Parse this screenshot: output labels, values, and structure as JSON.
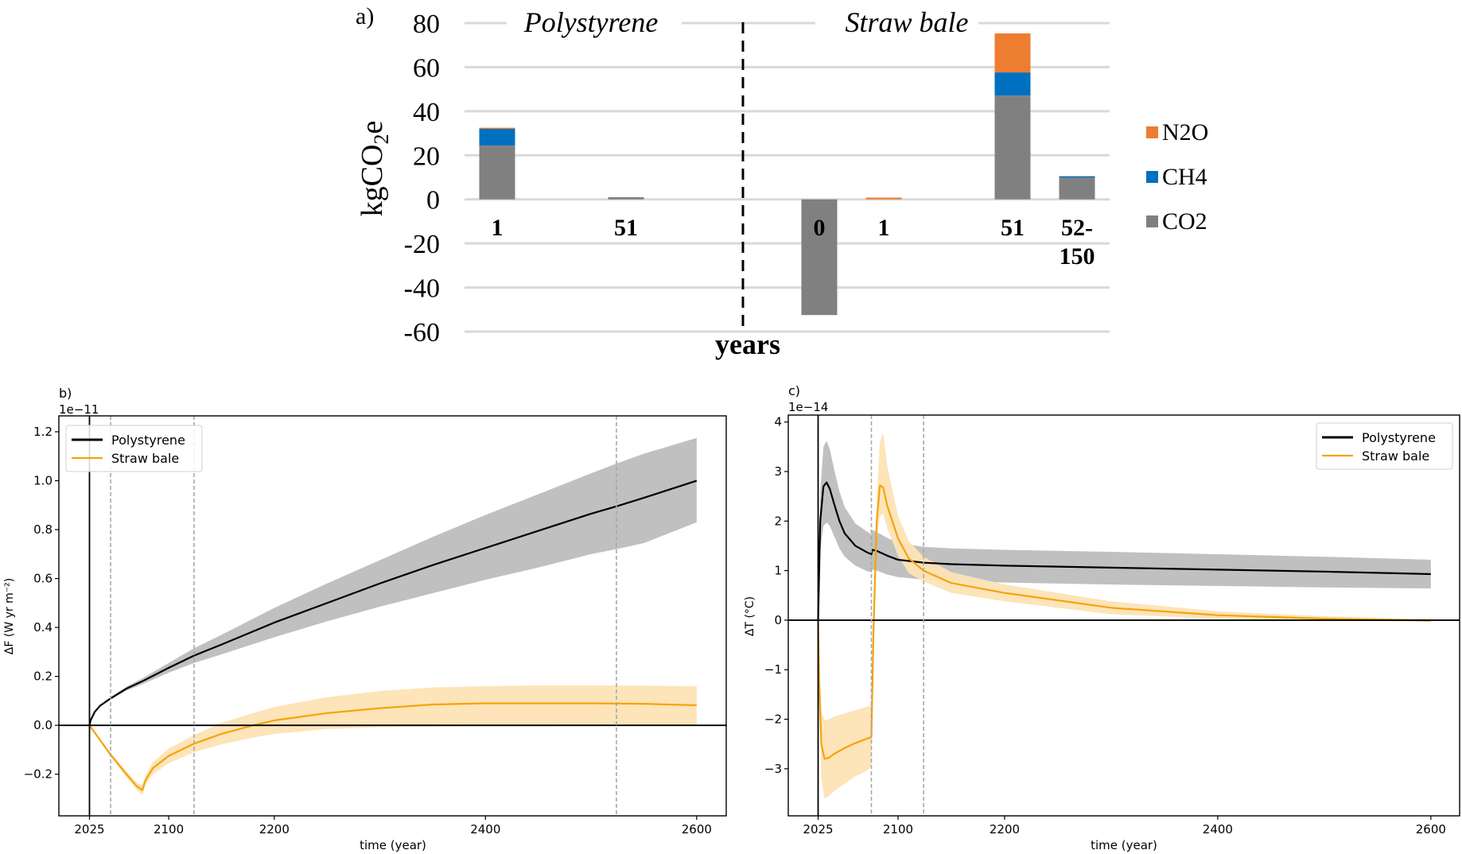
{
  "chart_data": [
    {
      "panel_label": "a)",
      "type": "bar",
      "stacked": true,
      "title": "",
      "group_titles": [
        "Polystyrene",
        "Straw bale"
      ],
      "xlabel": "years",
      "ylabel_main": "kgCO",
      "ylabel_sub": "2",
      "ylabel_suffix": "e",
      "ylim": [
        -60,
        80
      ],
      "yticks": [
        80,
        60,
        40,
        20,
        0,
        -20,
        -40,
        -60
      ],
      "ytick_labels": [
        "80",
        "60",
        "40",
        "20",
        "0",
        "-20",
        "-40",
        "-60"
      ],
      "grid": true,
      "legend_position": "right",
      "categories": [
        {
          "group": "Polystyrene",
          "label": [
            "1"
          ]
        },
        {
          "group": "Polystyrene",
          "label": [
            "51"
          ]
        },
        {
          "group": "Straw bale",
          "label": [
            "0"
          ]
        },
        {
          "group": "Straw bale",
          "label": [
            "1"
          ]
        },
        {
          "group": "Straw bale",
          "label": [
            "51"
          ]
        },
        {
          "group": "Straw bale",
          "label": [
            "52-",
            "150"
          ]
        }
      ],
      "series": [
        {
          "name": "CO2",
          "color": "#808080",
          "values": [
            24.4,
            1.0,
            -52.5,
            0.0,
            47.1,
            10.2
          ]
        },
        {
          "name": "CH4",
          "color": "#0070c0",
          "values": [
            7.8,
            0.0,
            0.0,
            0.0,
            10.5,
            0.3
          ]
        },
        {
          "name": "N2O",
          "color": "#ed7d31",
          "values": [
            0.3,
            0.0,
            0.0,
            0.8,
            17.7,
            0.0
          ]
        }
      ],
      "legend": [
        "N2O",
        "CH4",
        "CO2"
      ]
    },
    {
      "panel_label": "b)",
      "type": "line",
      "offset_text": "1e−11",
      "xlabel": "time (year)",
      "ylabel": "ΔF (W yr m⁻²)",
      "xlim": [
        1996,
        2628
      ],
      "ylim": [
        -0.37,
        1.265
      ],
      "xticks": [
        2025,
        2100,
        2200,
        2400,
        2600
      ],
      "yticks": [
        -0.2,
        0.0,
        0.2,
        0.4,
        0.6,
        0.8,
        1.0,
        1.2
      ],
      "ytick_labels": [
        "−0.2",
        "0.0",
        "0.2",
        "0.4",
        "0.6",
        "0.8",
        "1.0",
        "1.2"
      ],
      "vlines_solid": [
        2025
      ],
      "vlines_dashed": [
        2045,
        2124,
        2524
      ],
      "hline": 0,
      "legend_position": "upper-left",
      "series": [
        {
          "name": "Polystyrene",
          "color": "#000000",
          "band_color": "#bdbdbd",
          "x": [
            2025,
            2026,
            2030,
            2035,
            2045,
            2060,
            2075,
            2100,
            2124,
            2150,
            2200,
            2250,
            2300,
            2350,
            2400,
            2450,
            2500,
            2524,
            2550,
            2600
          ],
          "y": [
            0.0,
            0.02,
            0.055,
            0.08,
            0.11,
            0.15,
            0.18,
            0.235,
            0.285,
            0.33,
            0.42,
            0.5,
            0.58,
            0.655,
            0.725,
            0.795,
            0.865,
            0.895,
            0.93,
            1.0
          ],
          "lower": [
            0.0,
            0.02,
            0.054,
            0.078,
            0.105,
            0.142,
            0.168,
            0.215,
            0.255,
            0.29,
            0.36,
            0.425,
            0.485,
            0.54,
            0.595,
            0.645,
            0.7,
            0.72,
            0.745,
            0.83
          ],
          "upper": [
            0.0,
            0.02,
            0.056,
            0.082,
            0.115,
            0.158,
            0.192,
            0.255,
            0.315,
            0.37,
            0.48,
            0.58,
            0.675,
            0.77,
            0.86,
            0.945,
            1.03,
            1.07,
            1.11,
            1.175
          ]
        },
        {
          "name": "Straw bale",
          "color": "#f5a30a",
          "band_color": "#fde3b5",
          "x": [
            2025,
            2035,
            2045,
            2060,
            2070,
            2075,
            2078,
            2085,
            2100,
            2124,
            2150,
            2180,
            2200,
            2250,
            2300,
            2350,
            2400,
            2450,
            2500,
            2550,
            2600
          ],
          "y": [
            0.0,
            -0.06,
            -0.12,
            -0.2,
            -0.25,
            -0.265,
            -0.225,
            -0.175,
            -0.125,
            -0.075,
            -0.035,
            0.0,
            0.02,
            0.05,
            0.07,
            0.085,
            0.09,
            0.09,
            0.09,
            0.088,
            0.082
          ],
          "lower": [
            0.0,
            -0.065,
            -0.128,
            -0.212,
            -0.265,
            -0.285,
            -0.245,
            -0.2,
            -0.155,
            -0.11,
            -0.078,
            -0.05,
            -0.035,
            -0.015,
            -0.008,
            -0.005,
            -0.004,
            -0.004,
            -0.003,
            -0.002,
            0.0
          ],
          "upper": [
            0.0,
            -0.055,
            -0.112,
            -0.188,
            -0.235,
            -0.245,
            -0.205,
            -0.15,
            -0.095,
            -0.04,
            0.01,
            0.05,
            0.075,
            0.115,
            0.14,
            0.155,
            0.16,
            0.163,
            0.163,
            0.162,
            0.16
          ]
        }
      ]
    },
    {
      "panel_label": "c)",
      "type": "line",
      "offset_text": "1e−14",
      "xlabel": "time (year)",
      "ylabel": "ΔT (°C)",
      "xlim": [
        1997,
        2627
      ],
      "ylim": [
        -3.95,
        4.14
      ],
      "xticks": [
        2025,
        2100,
        2200,
        2400,
        2600
      ],
      "yticks": [
        -3,
        -2,
        -1,
        0,
        1,
        2,
        3,
        4
      ],
      "ytick_labels": [
        "−3",
        "−2",
        "−1",
        "0",
        "1",
        "2",
        "3",
        "4"
      ],
      "vlines_solid": [
        2025
      ],
      "vlines_dashed": [
        2075,
        2124
      ],
      "hline": 0,
      "legend_position": "upper-right",
      "series": [
        {
          "name": "Polystyrene",
          "color": "#000000",
          "band_color": "#bdbdbd",
          "x": [
            2025,
            2027,
            2030,
            2033,
            2036,
            2040,
            2045,
            2050,
            2060,
            2070,
            2075,
            2076,
            2080,
            2090,
            2100,
            2124,
            2150,
            2200,
            2300,
            2400,
            2500,
            2600
          ],
          "y": [
            0.0,
            2.0,
            2.7,
            2.78,
            2.65,
            2.35,
            2.0,
            1.75,
            1.5,
            1.38,
            1.33,
            1.42,
            1.4,
            1.3,
            1.22,
            1.16,
            1.13,
            1.1,
            1.06,
            1.02,
            0.98,
            0.93
          ],
          "lower": [
            0.0,
            1.4,
            1.9,
            1.97,
            1.9,
            1.7,
            1.45,
            1.28,
            1.1,
            1.0,
            0.96,
            1.02,
            1.0,
            0.92,
            0.87,
            0.82,
            0.79,
            0.76,
            0.72,
            0.69,
            0.66,
            0.64
          ],
          "upper": [
            0.0,
            2.6,
            3.5,
            3.62,
            3.45,
            3.05,
            2.6,
            2.28,
            1.95,
            1.8,
            1.73,
            1.82,
            1.78,
            1.66,
            1.56,
            1.48,
            1.45,
            1.42,
            1.38,
            1.33,
            1.28,
            1.22
          ]
        },
        {
          "name": "Straw bale",
          "color": "#f5a30a",
          "band_color": "#fde3b5",
          "x": [
            2025,
            2026,
            2028,
            2031,
            2035,
            2040,
            2050,
            2060,
            2070,
            2075,
            2077,
            2080,
            2083,
            2086,
            2090,
            2100,
            2110,
            2124,
            2150,
            2200,
            2300,
            2400,
            2500,
            2600
          ],
          "y": [
            0.0,
            -1.2,
            -2.5,
            -2.8,
            -2.78,
            -2.7,
            -2.58,
            -2.48,
            -2.4,
            -2.36,
            -0.2,
            2.0,
            2.72,
            2.68,
            2.3,
            1.65,
            1.25,
            1.0,
            0.75,
            0.55,
            0.25,
            0.1,
            0.03,
            -0.01
          ],
          "lower": [
            0.0,
            -1.5,
            -3.2,
            -3.6,
            -3.55,
            -3.45,
            -3.3,
            -3.15,
            -3.05,
            -2.95,
            -0.3,
            1.6,
            2.1,
            2.15,
            1.85,
            1.3,
            0.95,
            0.78,
            0.55,
            0.38,
            0.12,
            0.03,
            -0.01,
            -0.03
          ],
          "upper": [
            0.0,
            -0.9,
            -1.85,
            -2.02,
            -2.0,
            -1.95,
            -1.88,
            -1.82,
            -1.75,
            -1.72,
            -0.1,
            2.4,
            3.6,
            3.78,
            3.1,
            2.1,
            1.6,
            1.28,
            0.97,
            0.72,
            0.38,
            0.18,
            0.08,
            0.02
          ]
        }
      ]
    }
  ]
}
